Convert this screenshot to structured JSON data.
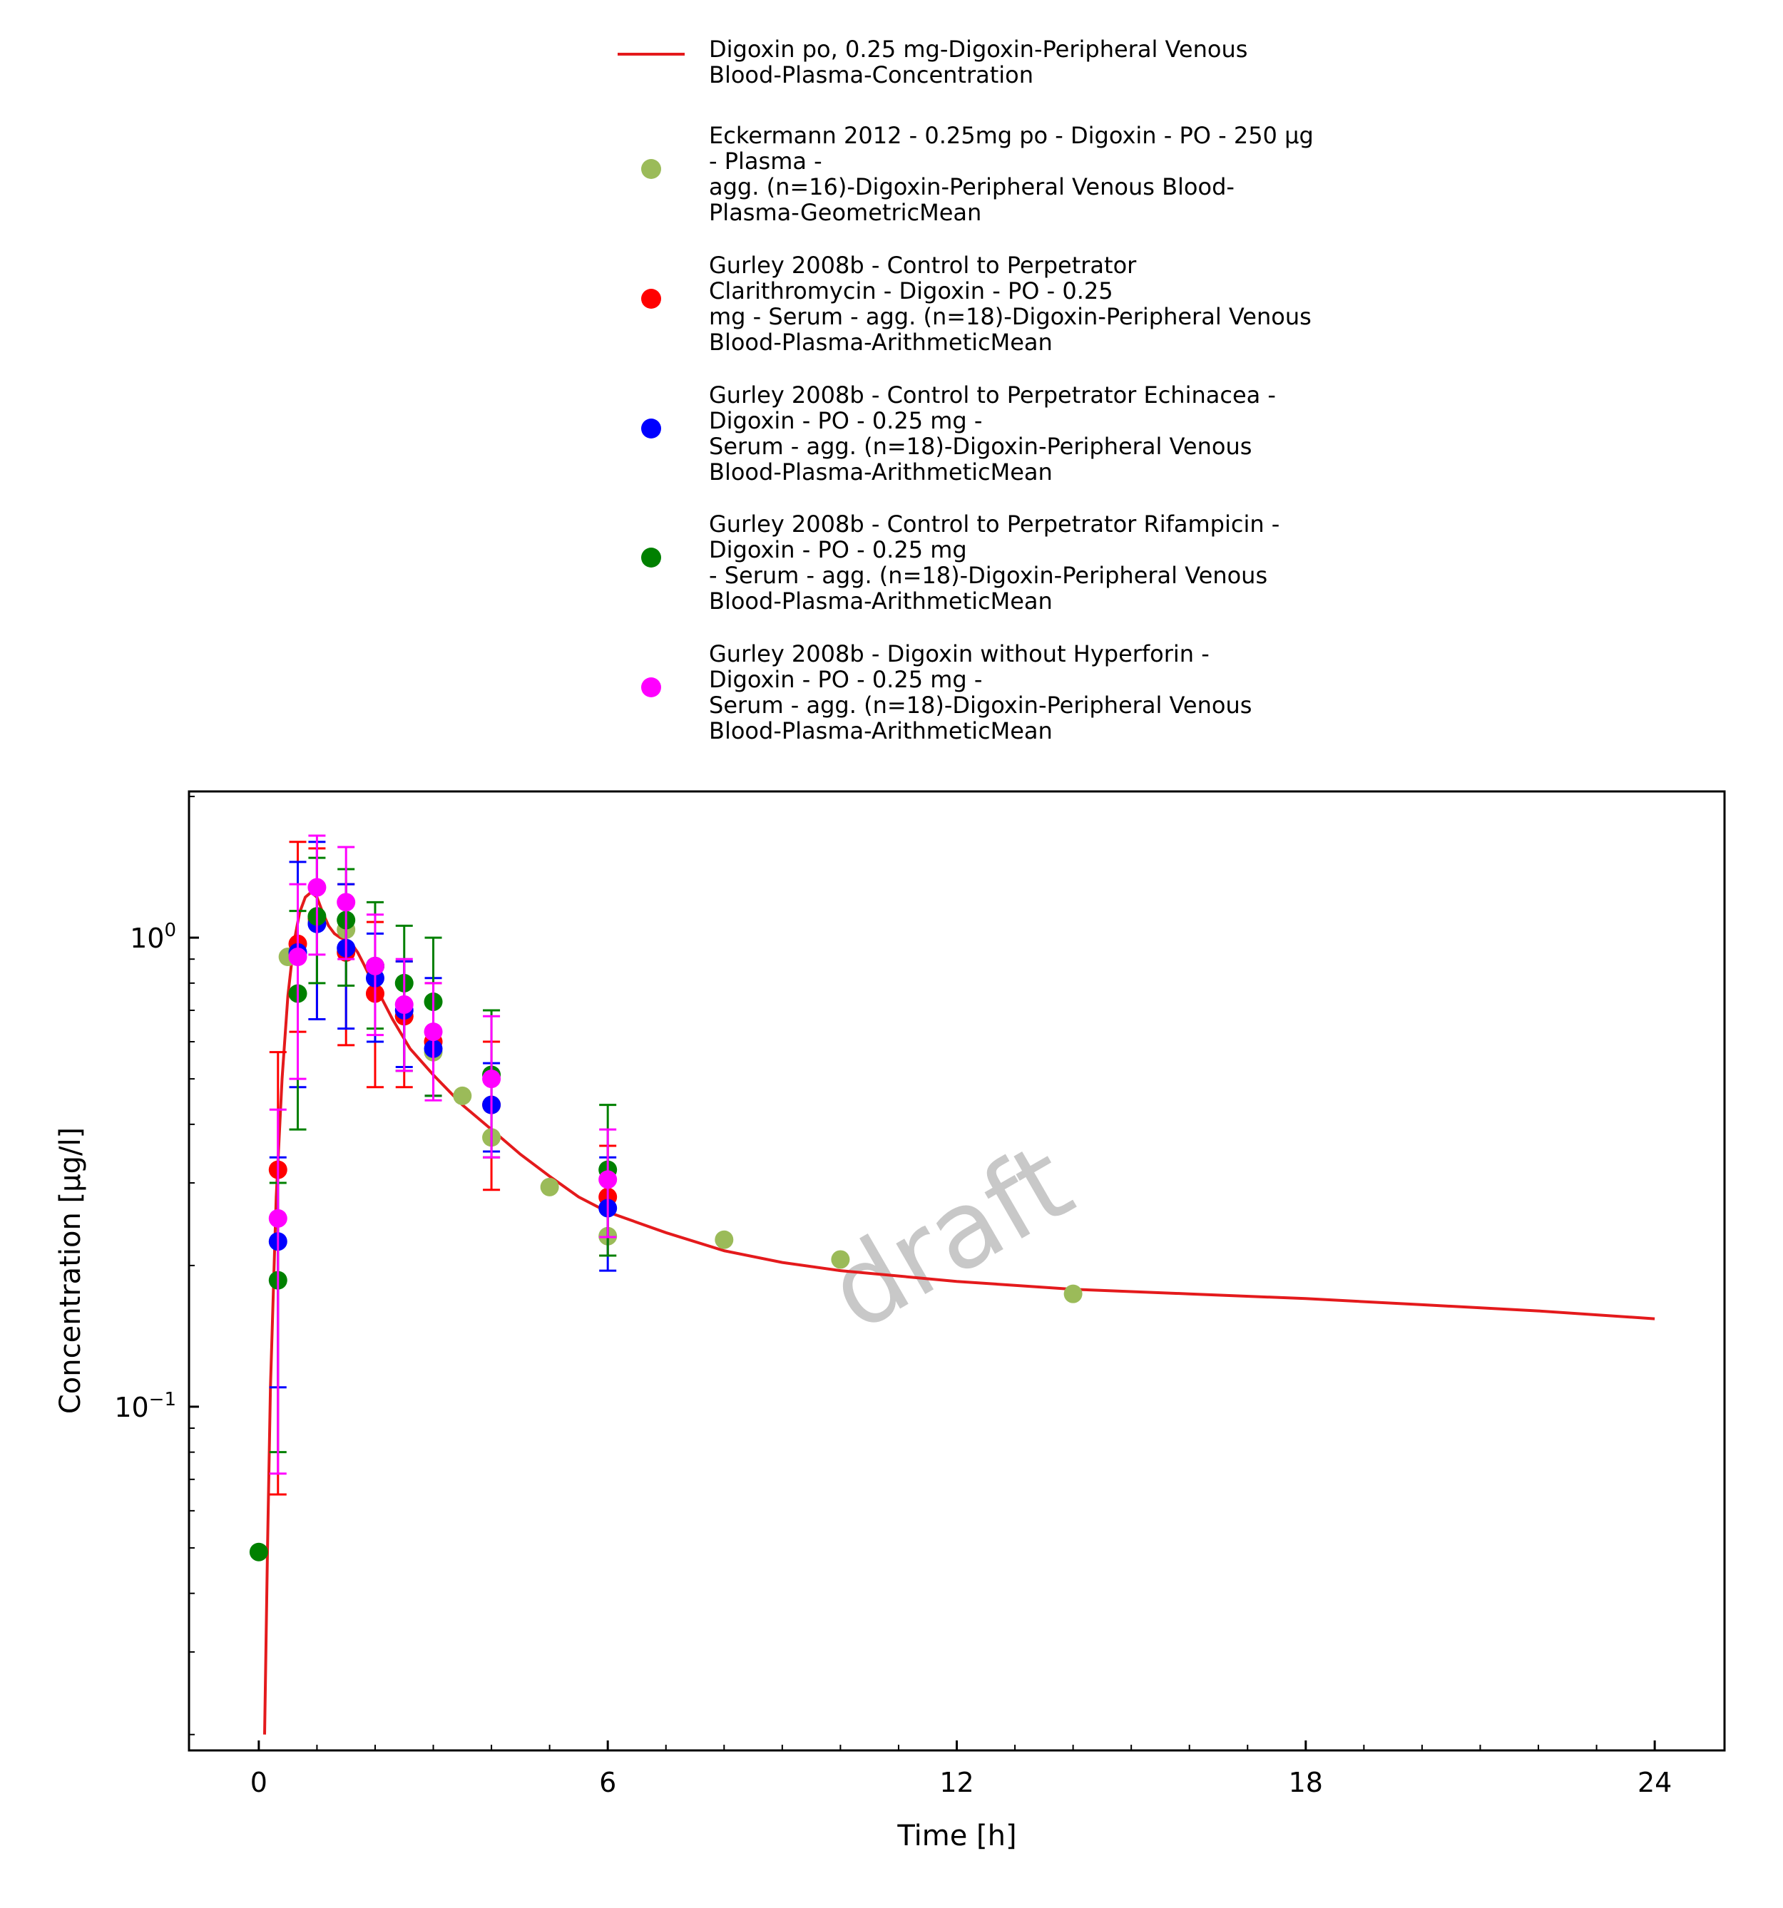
{
  "chart_data": {
    "type": "scatter",
    "x_scale": "linear",
    "y_scale": "log",
    "xlabel": "Time [h]",
    "ylabel": "Concentration [µg/l]",
    "xlim": [
      -1.2,
      25.2
    ],
    "ylim": [
      0.0185,
      2.05
    ],
    "x_ticks": [
      0,
      6,
      12,
      18,
      24
    ],
    "x_tick_labels": [
      "0",
      "6",
      "12",
      "18",
      "24"
    ],
    "y_ticks": [
      0.1,
      1
    ],
    "y_tick_labels": [
      {
        "base": "10",
        "exp": "−1"
      },
      {
        "base": "10",
        "exp": "0"
      }
    ],
    "legend_position": "top (above plot)",
    "watermark": "draft",
    "series": [
      {
        "name": "Digoxin po, 0.25 mg-Digoxin-Peripheral Venous Blood-Plasma-Concentration",
        "legend_lines": [
          "Digoxin po, 0.25 mg-Digoxin-Peripheral Venous",
          "Blood-Plasma-Concentration"
        ],
        "kind": "line",
        "color": "#e41a1c",
        "x": [
          0.1,
          0.15,
          0.2,
          0.3,
          0.4,
          0.5,
          0.6,
          0.7,
          0.8,
          0.9,
          1.0,
          1.1,
          1.2,
          1.3,
          1.4,
          1.5,
          1.6,
          1.7,
          1.8,
          1.9,
          2.0,
          2.3,
          2.6,
          3.0,
          3.5,
          4.0,
          4.5,
          5.0,
          5.5,
          6.0,
          7.0,
          8.0,
          9.0,
          10.0,
          12.0,
          14.0,
          16.0,
          18.0,
          20.0,
          22.0,
          24.0
        ],
        "y": [
          0.02,
          0.05,
          0.11,
          0.28,
          0.5,
          0.75,
          0.97,
          1.13,
          1.22,
          1.25,
          1.22,
          1.13,
          1.06,
          1.02,
          1.0,
          0.99,
          0.97,
          0.93,
          0.88,
          0.83,
          0.79,
          0.67,
          0.58,
          0.51,
          0.44,
          0.39,
          0.345,
          0.31,
          0.28,
          0.26,
          0.235,
          0.215,
          0.203,
          0.195,
          0.185,
          0.178,
          0.174,
          0.17,
          0.165,
          0.16,
          0.154
        ]
      },
      {
        "name": "Eckermann 2012 - 0.25mg po - Digoxin - PO - 250 µg - Plasma - agg. (n=16)-Digoxin-Peripheral Venous Blood-Plasma-GeometricMean",
        "legend_lines": [
          "Eckermann 2012 - 0.25mg po - Digoxin - PO - 250 µg",
          "- Plasma -",
          "agg. (n=16)-Digoxin-Peripheral Venous Blood-",
          "Plasma-GeometricMean"
        ],
        "kind": "points",
        "color": "#9bbb59",
        "x": [
          0.5,
          1.0,
          1.5,
          2.0,
          2.5,
          3.0,
          3.5,
          4.0,
          5.0,
          6.0,
          8.0,
          10.0,
          14.0
        ],
        "y": [
          0.91,
          1.08,
          1.04,
          0.87,
          0.68,
          0.57,
          0.46,
          0.375,
          0.294,
          0.231,
          0.227,
          0.206,
          0.174
        ]
      },
      {
        "name": "Gurley 2008b - Control to Perpetrator Clarithromycin - Digoxin - PO - 0.25 mg - Serum - agg. (n=18)-Digoxin-Peripheral Venous Blood-Plasma-ArithmeticMean",
        "legend_lines": [
          "Gurley 2008b - Control to Perpetrator",
          "Clarithromycin - Digoxin - PO - 0.25",
          "mg - Serum - agg. (n=18)-Digoxin-Peripheral Venous",
          "Blood-Plasma-ArithmeticMean"
        ],
        "kind": "points",
        "color": "#ff0000",
        "x": [
          0.33,
          0.67,
          1.0,
          1.5,
          2.0,
          2.5,
          3.0,
          4.0,
          6.0
        ],
        "y": [
          0.32,
          0.97,
          1.1,
          0.93,
          0.76,
          0.68,
          0.6,
          0.44,
          0.28
        ],
        "err_low": [
          0.065,
          0.63,
          0.67,
          0.59,
          0.48,
          0.48,
          0.46,
          0.29,
          0.21
        ],
        "err_high": [
          0.57,
          1.6,
          1.55,
          1.3,
          1.08,
          0.89,
          0.8,
          0.6,
          0.36
        ]
      },
      {
        "name": "Gurley 2008b - Control to Perpetrator Echinacea - Digoxin - PO - 0.25 mg - Serum - agg. (n=18)-Digoxin-Peripheral Venous Blood-Plasma-ArithmeticMean",
        "legend_lines": [
          "Gurley 2008b - Control to Perpetrator Echinacea -",
          "Digoxin - PO - 0.25 mg -",
          "Serum - agg. (n=18)-Digoxin-Peripheral Venous",
          "Blood-Plasma-ArithmeticMean"
        ],
        "kind": "points",
        "color": "#0000ff",
        "x": [
          0.33,
          0.67,
          1.0,
          1.5,
          2.0,
          2.5,
          3.0,
          4.0,
          6.0
        ],
        "y": [
          0.225,
          0.93,
          1.07,
          0.95,
          0.82,
          0.7,
          0.58,
          0.44,
          0.265
        ],
        "err_low": [
          0.11,
          0.48,
          0.67,
          0.64,
          0.6,
          0.53,
          0.46,
          0.35,
          0.195
        ],
        "err_high": [
          0.34,
          1.45,
          1.6,
          1.3,
          1.02,
          0.89,
          0.82,
          0.54,
          0.34
        ]
      },
      {
        "name": "Gurley 2008b - Control to Perpetrator Rifampicin - Digoxin - PO - 0.25 mg - Serum - agg. (n=18)-Digoxin-Peripheral Venous Blood-Plasma-ArithmeticMean",
        "legend_lines": [
          "Gurley 2008b - Control to Perpetrator Rifampicin -",
          "Digoxin - PO - 0.25 mg",
          "- Serum - agg. (n=18)-Digoxin-Peripheral Venous",
          "Blood-Plasma-ArithmeticMean"
        ],
        "kind": "points",
        "color": "#008000",
        "x": [
          0.0,
          0.33,
          0.67,
          1.0,
          1.5,
          2.0,
          2.5,
          3.0,
          4.0,
          6.0
        ],
        "y": [
          0.049,
          0.186,
          0.76,
          1.11,
          1.09,
          0.87,
          0.8,
          0.73,
          0.51,
          0.32
        ],
        "err_low": [
          null,
          0.08,
          0.39,
          0.8,
          0.79,
          0.64,
          0.52,
          0.46,
          0.34,
          0.21
        ],
        "err_high": [
          null,
          0.3,
          1.14,
          1.48,
          1.4,
          1.19,
          1.06,
          1.0,
          0.7,
          0.44
        ]
      },
      {
        "name": "Gurley 2008b - Digoxin without Hyperforin - Digoxin - PO - 0.25 mg - Serum - agg. (n=18)-Digoxin-Peripheral Venous Blood-Plasma-ArithmeticMean",
        "legend_lines": [
          "Gurley 2008b - Digoxin without Hyperforin -",
          "Digoxin - PO - 0.25 mg -",
          "Serum - agg. (n=18)-Digoxin-Peripheral Venous",
          "Blood-Plasma-ArithmeticMean"
        ],
        "kind": "points",
        "color": "#ff00ff",
        "x": [
          0.33,
          0.67,
          1.0,
          1.5,
          2.0,
          2.5,
          3.0,
          4.0,
          6.0
        ],
        "y": [
          0.252,
          0.91,
          1.28,
          1.19,
          0.87,
          0.72,
          0.63,
          0.5,
          0.305
        ],
        "err_low": [
          0.072,
          0.5,
          0.92,
          0.9,
          0.62,
          0.52,
          0.45,
          0.34,
          0.23
        ],
        "err_high": [
          0.43,
          1.3,
          1.65,
          1.56,
          1.12,
          0.9,
          0.8,
          0.68,
          0.39
        ]
      }
    ]
  }
}
